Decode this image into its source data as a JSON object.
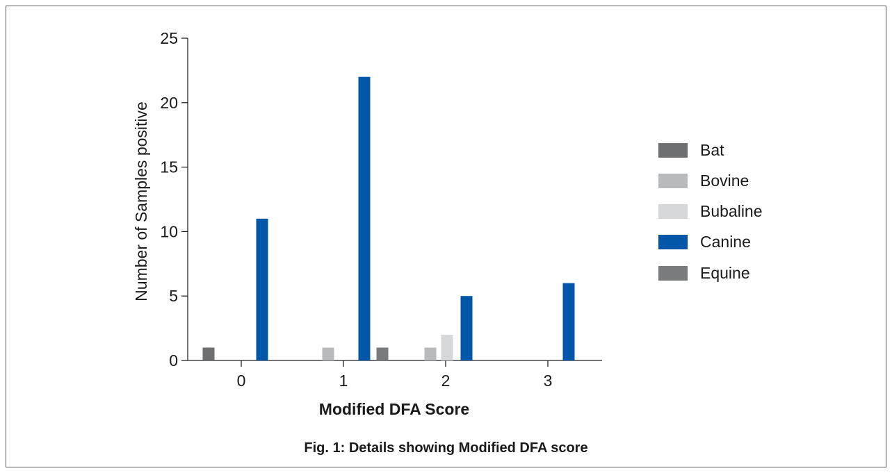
{
  "chart_data": {
    "type": "bar",
    "title": "",
    "xlabel": "Modified DFA Score",
    "ylabel": "Number of Samples positive",
    "categories": [
      "0",
      "1",
      "2",
      "3"
    ],
    "yticks": [
      "0",
      "5",
      "10",
      "15",
      "20",
      "25"
    ],
    "ylim": [
      0,
      25
    ],
    "grid": false,
    "legend_position": "right",
    "series": [
      {
        "name": "Bat",
        "color": "#6d6e70",
        "values": [
          1,
          0,
          0,
          0
        ]
      },
      {
        "name": "Bovine",
        "color": "#b9babc",
        "values": [
          0,
          1,
          1,
          0
        ]
      },
      {
        "name": "Bubaline",
        "color": "#d6d7d9",
        "values": [
          0,
          0,
          2,
          0
        ]
      },
      {
        "name": "Canine",
        "color": "#0057a8",
        "values": [
          11,
          22,
          5,
          6
        ]
      },
      {
        "name": "Equine",
        "color": "#7a7b7d",
        "values": [
          0,
          1,
          0,
          0
        ]
      }
    ]
  },
  "caption": "Fig. 1: Details showing Modified DFA score"
}
